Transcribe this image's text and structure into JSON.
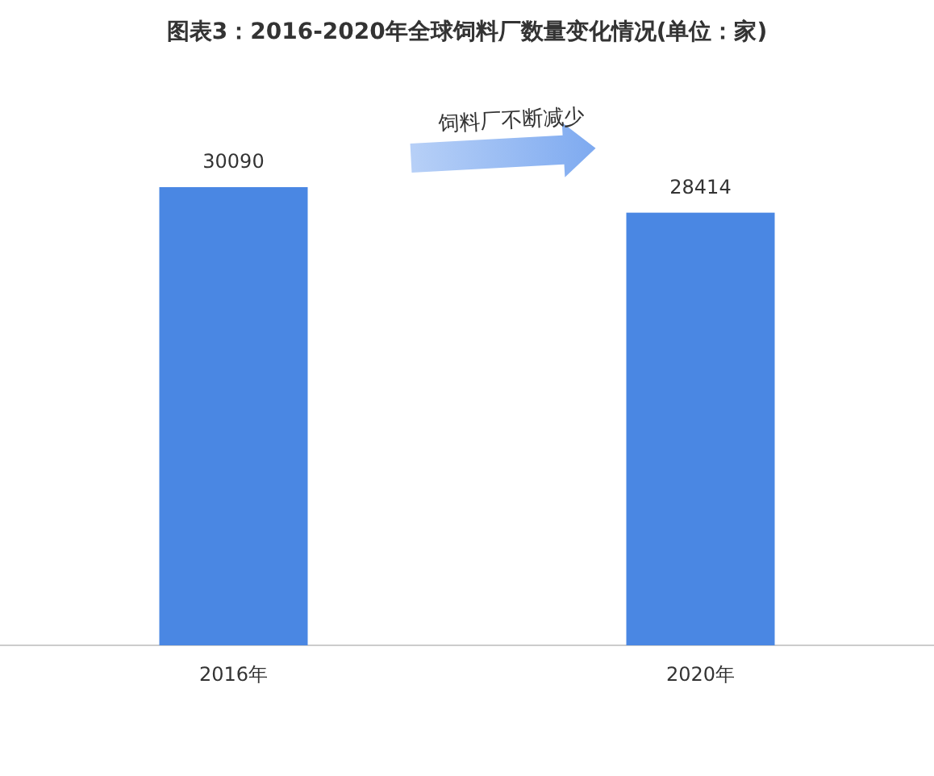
{
  "chart_data": {
    "type": "bar",
    "title": "图表3：2016-2020年全球饲料厂数量变化情况(单位：家)",
    "categories": [
      "2016年",
      "2020年"
    ],
    "values": [
      30090,
      28414
    ],
    "color": "#4a87e3",
    "data_labels": true,
    "annotations": [
      "饲料厂不断减少"
    ]
  }
}
